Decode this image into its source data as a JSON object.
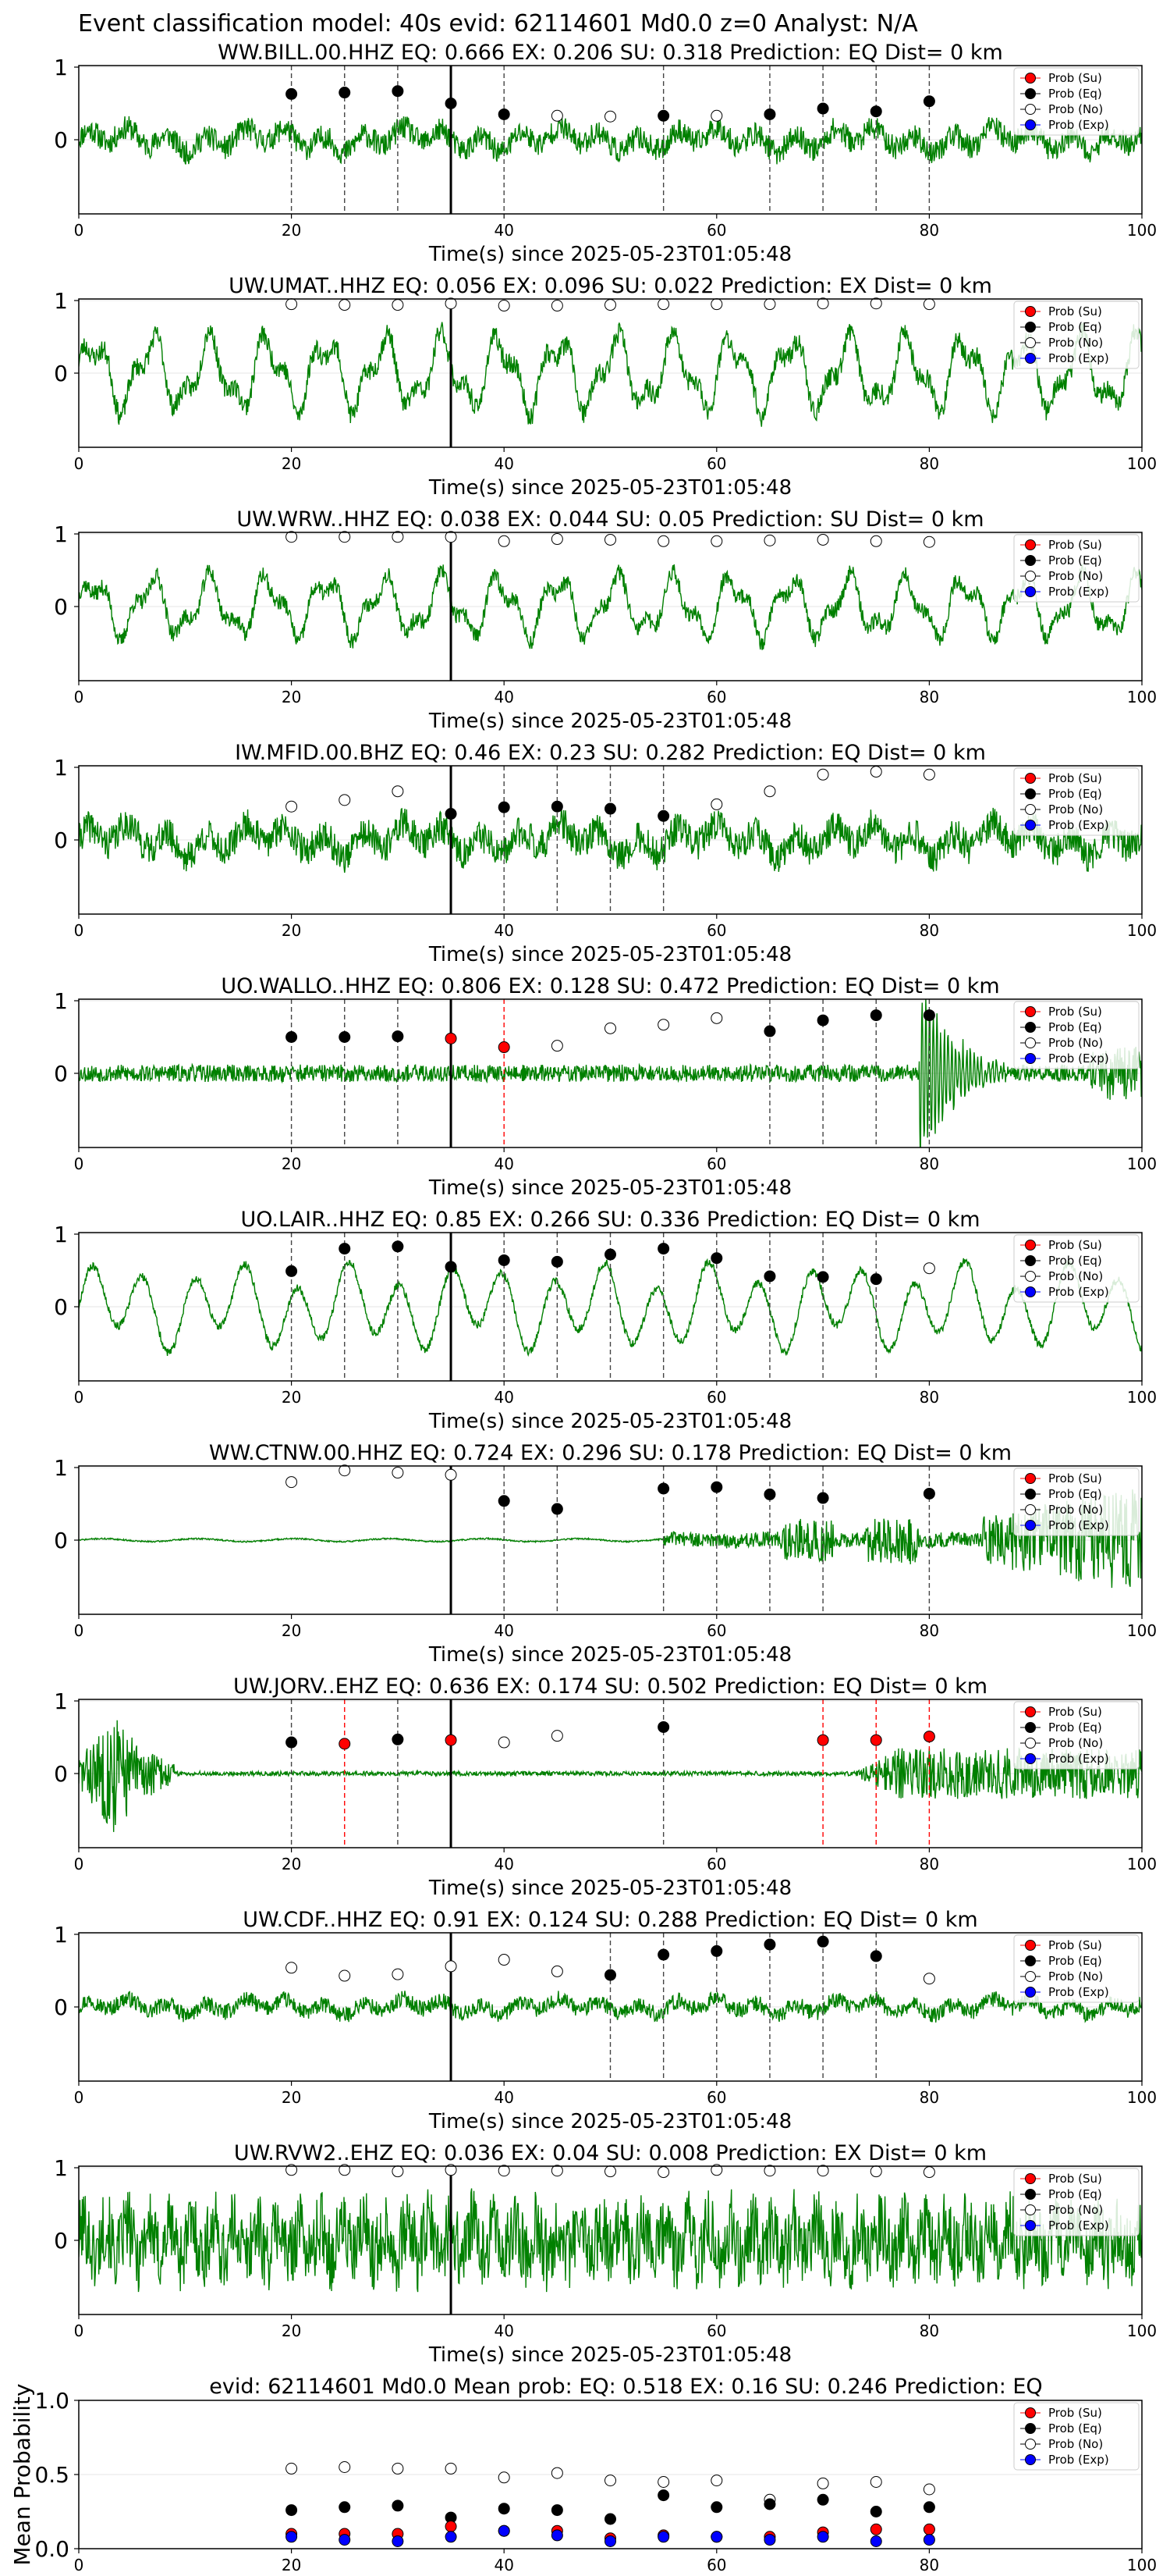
{
  "figure_title": "Event classification model: 40s evid: 62114601 Md0.0 z=0 Analyst: N/A",
  "legend_labels": [
    "Prob (Su)",
    "Prob (Eq)",
    "Prob (No)",
    "Prob (Exp)"
  ],
  "colors": {
    "su": "#ff0000",
    "eq": "#000000",
    "no": "#ffffff",
    "exp": "#0000ff",
    "trace": "#008000",
    "origin": "#000000"
  },
  "xlabel": "Time(s) since 2025-05-23T01:05:48",
  "x_ticks": [
    0,
    20,
    40,
    60,
    80,
    100
  ],
  "trace_y_ticks": [
    0,
    1
  ],
  "chart_data": [
    {
      "type": "line",
      "title": "WW.BILL.00.HHZ   EQ: 0.666  EX: 0.206  SU: 0.318   Prediction: EQ    Dist= 0 km",
      "xlabel": "Time(s) since 2025-05-23T01:05:48",
      "xlim": [
        0,
        100
      ],
      "ylim": [
        -1,
        1
      ],
      "origin_time": 35,
      "trace_style": "noisy",
      "trace_amp": 0.3,
      "trace_seed": 11,
      "windows": [
        {
          "t": 20,
          "p": 0.63,
          "c": "eq"
        },
        {
          "t": 25,
          "p": 0.65,
          "c": "eq"
        },
        {
          "t": 30,
          "p": 0.67,
          "c": "eq"
        },
        {
          "t": 35,
          "p": 0.5,
          "c": "eq"
        },
        {
          "t": 40,
          "p": 0.35,
          "c": "eq"
        },
        {
          "t": 45,
          "p": 0.33,
          "c": "no"
        },
        {
          "t": 50,
          "p": 0.32,
          "c": "no"
        },
        {
          "t": 55,
          "p": 0.33,
          "c": "eq"
        },
        {
          "t": 60,
          "p": 0.33,
          "c": "no"
        },
        {
          "t": 65,
          "p": 0.35,
          "c": "eq"
        },
        {
          "t": 70,
          "p": 0.43,
          "c": "eq"
        },
        {
          "t": 75,
          "p": 0.39,
          "c": "eq"
        },
        {
          "t": 80,
          "p": 0.53,
          "c": "eq"
        }
      ]
    },
    {
      "type": "line",
      "title": "UW.UMAT..HHZ   EQ: 0.056  EX: 0.096  SU: 0.022   Prediction: EX    Dist= 0 km",
      "xlabel": "Time(s) since 2025-05-23T01:05:48",
      "xlim": [
        0,
        100
      ],
      "ylim": [
        -1,
        1
      ],
      "origin_time": 35,
      "trace_style": "wavy",
      "trace_amp": 0.55,
      "trace_seed": 23,
      "windows": [
        {
          "t": 20,
          "p": 0.95,
          "c": "no"
        },
        {
          "t": 25,
          "p": 0.94,
          "c": "no"
        },
        {
          "t": 30,
          "p": 0.94,
          "c": "no"
        },
        {
          "t": 35,
          "p": 0.96,
          "c": "no"
        },
        {
          "t": 40,
          "p": 0.93,
          "c": "no"
        },
        {
          "t": 45,
          "p": 0.93,
          "c": "no"
        },
        {
          "t": 50,
          "p": 0.94,
          "c": "no"
        },
        {
          "t": 55,
          "p": 0.95,
          "c": "no"
        },
        {
          "t": 60,
          "p": 0.95,
          "c": "no"
        },
        {
          "t": 65,
          "p": 0.95,
          "c": "no"
        },
        {
          "t": 70,
          "p": 0.96,
          "c": "no"
        },
        {
          "t": 75,
          "p": 0.96,
          "c": "no"
        },
        {
          "t": 80,
          "p": 0.95,
          "c": "no"
        }
      ]
    },
    {
      "type": "line",
      "title": "UW.WRW..HHZ   EQ: 0.038  EX: 0.044  SU: 0.05   Prediction: SU    Dist= 0 km",
      "xlabel": "Time(s) since 2025-05-23T01:05:48",
      "xlim": [
        0,
        100
      ],
      "ylim": [
        -1,
        1
      ],
      "origin_time": 35,
      "trace_style": "wavy",
      "trace_amp": 0.45,
      "trace_seed": 37,
      "windows": [
        {
          "t": 20,
          "p": 0.96,
          "c": "no"
        },
        {
          "t": 25,
          "p": 0.96,
          "c": "no"
        },
        {
          "t": 30,
          "p": 0.96,
          "c": "no"
        },
        {
          "t": 35,
          "p": 0.96,
          "c": "no"
        },
        {
          "t": 40,
          "p": 0.9,
          "c": "no"
        },
        {
          "t": 45,
          "p": 0.93,
          "c": "no"
        },
        {
          "t": 50,
          "p": 0.92,
          "c": "no"
        },
        {
          "t": 55,
          "p": 0.9,
          "c": "no"
        },
        {
          "t": 60,
          "p": 0.9,
          "c": "no"
        },
        {
          "t": 65,
          "p": 0.91,
          "c": "no"
        },
        {
          "t": 70,
          "p": 0.92,
          "c": "no"
        },
        {
          "t": 75,
          "p": 0.9,
          "c": "no"
        },
        {
          "t": 80,
          "p": 0.89,
          "c": "no"
        }
      ]
    },
    {
      "type": "line",
      "title": "IW.MFID.00.BHZ   EQ: 0.46  EX: 0.23  SU: 0.282   Prediction: EQ    Dist= 0 km",
      "xlabel": "Time(s) since 2025-05-23T01:05:48",
      "xlim": [
        0,
        100
      ],
      "ylim": [
        -1,
        1
      ],
      "origin_time": 35,
      "trace_style": "noisy",
      "trace_amp": 0.4,
      "trace_seed": 41,
      "windows": [
        {
          "t": 20,
          "p": 0.46,
          "c": "no"
        },
        {
          "t": 25,
          "p": 0.55,
          "c": "no"
        },
        {
          "t": 30,
          "p": 0.67,
          "c": "no"
        },
        {
          "t": 35,
          "p": 0.36,
          "c": "eq"
        },
        {
          "t": 40,
          "p": 0.45,
          "c": "eq"
        },
        {
          "t": 45,
          "p": 0.46,
          "c": "eq"
        },
        {
          "t": 50,
          "p": 0.43,
          "c": "eq"
        },
        {
          "t": 55,
          "p": 0.33,
          "c": "eq"
        },
        {
          "t": 60,
          "p": 0.49,
          "c": "no"
        },
        {
          "t": 65,
          "p": 0.67,
          "c": "no"
        },
        {
          "t": 70,
          "p": 0.9,
          "c": "no"
        },
        {
          "t": 75,
          "p": 0.94,
          "c": "no"
        },
        {
          "t": 80,
          "p": 0.9,
          "c": "no"
        }
      ]
    },
    {
      "type": "line",
      "title": "UO.WALLO..HHZ   EQ: 0.806  EX: 0.128  SU: 0.472   Prediction: EQ    Dist= 0 km",
      "xlabel": "Time(s) since 2025-05-23T01:05:48",
      "xlim": [
        0,
        100
      ],
      "ylim": [
        -1,
        1
      ],
      "origin_time": 35,
      "trace_style": "burst_late",
      "trace_amp": 0.12,
      "trace_seed": 53,
      "windows": [
        {
          "t": 20,
          "p": 0.5,
          "c": "eq"
        },
        {
          "t": 25,
          "p": 0.5,
          "c": "eq"
        },
        {
          "t": 30,
          "p": 0.51,
          "c": "eq"
        },
        {
          "t": 35,
          "p": 0.48,
          "c": "su"
        },
        {
          "t": 40,
          "p": 0.36,
          "c": "su"
        },
        {
          "t": 45,
          "p": 0.38,
          "c": "no"
        },
        {
          "t": 50,
          "p": 0.62,
          "c": "no"
        },
        {
          "t": 55,
          "p": 0.67,
          "c": "no"
        },
        {
          "t": 60,
          "p": 0.76,
          "c": "no"
        },
        {
          "t": 65,
          "p": 0.58,
          "c": "eq"
        },
        {
          "t": 70,
          "p": 0.73,
          "c": "eq"
        },
        {
          "t": 75,
          "p": 0.8,
          "c": "eq"
        },
        {
          "t": 80,
          "p": 0.8,
          "c": "eq"
        }
      ]
    },
    {
      "type": "line",
      "title": "UO.LAIR..HHZ   EQ: 0.85  EX: 0.266  SU: 0.336   Prediction: EQ    Dist= 0 km",
      "xlabel": "Time(s) since 2025-05-23T01:05:48",
      "xlim": [
        0,
        100
      ],
      "ylim": [
        -1,
        1
      ],
      "origin_time": 35,
      "trace_style": "smooth",
      "trace_amp": 0.55,
      "trace_seed": 67,
      "windows": [
        {
          "t": 20,
          "p": 0.49,
          "c": "eq"
        },
        {
          "t": 25,
          "p": 0.8,
          "c": "eq"
        },
        {
          "t": 30,
          "p": 0.83,
          "c": "eq"
        },
        {
          "t": 35,
          "p": 0.55,
          "c": "eq"
        },
        {
          "t": 40,
          "p": 0.64,
          "c": "eq"
        },
        {
          "t": 45,
          "p": 0.62,
          "c": "eq"
        },
        {
          "t": 50,
          "p": 0.72,
          "c": "eq"
        },
        {
          "t": 55,
          "p": 0.8,
          "c": "eq"
        },
        {
          "t": 60,
          "p": 0.67,
          "c": "eq"
        },
        {
          "t": 65,
          "p": 0.42,
          "c": "eq"
        },
        {
          "t": 70,
          "p": 0.41,
          "c": "eq"
        },
        {
          "t": 75,
          "p": 0.38,
          "c": "eq"
        },
        {
          "t": 80,
          "p": 0.53,
          "c": "no"
        }
      ]
    },
    {
      "type": "line",
      "title": "WW.CTNW.00.HHZ   EQ: 0.724  EX: 0.296  SU: 0.178   Prediction: EQ    Dist= 0 km",
      "xlabel": "Time(s) since 2025-05-23T01:05:48",
      "xlim": [
        0,
        100
      ],
      "ylim": [
        -1,
        1
      ],
      "origin_time": 35,
      "trace_style": "quiet_late",
      "trace_amp": 0.02,
      "trace_seed": 71,
      "windows": [
        {
          "t": 20,
          "p": 0.8,
          "c": "no"
        },
        {
          "t": 25,
          "p": 0.96,
          "c": "no"
        },
        {
          "t": 30,
          "p": 0.93,
          "c": "no"
        },
        {
          "t": 35,
          "p": 0.9,
          "c": "no"
        },
        {
          "t": 40,
          "p": 0.54,
          "c": "eq"
        },
        {
          "t": 45,
          "p": 0.43,
          "c": "eq"
        },
        {
          "t": 55,
          "p": 0.71,
          "c": "eq"
        },
        {
          "t": 60,
          "p": 0.73,
          "c": "eq"
        },
        {
          "t": 65,
          "p": 0.63,
          "c": "eq"
        },
        {
          "t": 70,
          "p": 0.58,
          "c": "eq"
        },
        {
          "t": 80,
          "p": 0.64,
          "c": "eq"
        }
      ]
    },
    {
      "type": "line",
      "title": "UW.JORV..EHZ   EQ: 0.636  EX: 0.174  SU: 0.502   Prediction: EQ    Dist= 0 km",
      "xlabel": "Time(s) since 2025-05-23T01:05:48",
      "xlim": [
        0,
        100
      ],
      "ylim": [
        -1,
        1
      ],
      "origin_time": 35,
      "trace_style": "burst_early",
      "trace_amp": 0.03,
      "trace_seed": 83,
      "windows": [
        {
          "t": 20,
          "p": 0.43,
          "c": "eq"
        },
        {
          "t": 25,
          "p": 0.41,
          "c": "su"
        },
        {
          "t": 30,
          "p": 0.47,
          "c": "eq"
        },
        {
          "t": 35,
          "p": 0.46,
          "c": "su"
        },
        {
          "t": 40,
          "p": 0.43,
          "c": "no"
        },
        {
          "t": 45,
          "p": 0.52,
          "c": "no"
        },
        {
          "t": 55,
          "p": 0.64,
          "c": "eq"
        },
        {
          "t": 70,
          "p": 0.46,
          "c": "su"
        },
        {
          "t": 75,
          "p": 0.46,
          "c": "su"
        },
        {
          "t": 80,
          "p": 0.51,
          "c": "su"
        }
      ]
    },
    {
      "type": "line",
      "title": "UW.CDF..HHZ   EQ: 0.91  EX: 0.124  SU: 0.288   Prediction: EQ    Dist= 0 km",
      "xlabel": "Time(s) since 2025-05-23T01:05:48",
      "xlim": [
        0,
        100
      ],
      "ylim": [
        -1,
        1
      ],
      "origin_time": 35,
      "trace_style": "noisy",
      "trace_amp": 0.2,
      "trace_seed": 97,
      "windows": [
        {
          "t": 20,
          "p": 0.54,
          "c": "no"
        },
        {
          "t": 25,
          "p": 0.43,
          "c": "no"
        },
        {
          "t": 30,
          "p": 0.45,
          "c": "no"
        },
        {
          "t": 35,
          "p": 0.56,
          "c": "no"
        },
        {
          "t": 40,
          "p": 0.65,
          "c": "no"
        },
        {
          "t": 45,
          "p": 0.49,
          "c": "no"
        },
        {
          "t": 50,
          "p": 0.44,
          "c": "eq"
        },
        {
          "t": 55,
          "p": 0.72,
          "c": "eq"
        },
        {
          "t": 60,
          "p": 0.77,
          "c": "eq"
        },
        {
          "t": 65,
          "p": 0.86,
          "c": "eq"
        },
        {
          "t": 70,
          "p": 0.9,
          "c": "eq"
        },
        {
          "t": 75,
          "p": 0.7,
          "c": "eq"
        },
        {
          "t": 80,
          "p": 0.39,
          "c": "no"
        }
      ]
    },
    {
      "type": "line",
      "title": "UW.RVW2..EHZ   EQ: 0.036  EX: 0.04  SU: 0.008   Prediction: EX    Dist= 0 km",
      "xlabel": "Time(s) since 2025-05-23T01:05:48",
      "xlim": [
        0,
        100
      ],
      "ylim": [
        -1,
        1
      ],
      "origin_time": 35,
      "trace_style": "dense",
      "trace_amp": 0.6,
      "trace_seed": 101,
      "windows": [
        {
          "t": 20,
          "p": 0.97,
          "c": "no"
        },
        {
          "t": 25,
          "p": 0.97,
          "c": "no"
        },
        {
          "t": 30,
          "p": 0.95,
          "c": "no"
        },
        {
          "t": 35,
          "p": 0.97,
          "c": "no"
        },
        {
          "t": 40,
          "p": 0.96,
          "c": "no"
        },
        {
          "t": 45,
          "p": 0.96,
          "c": "no"
        },
        {
          "t": 50,
          "p": 0.95,
          "c": "no"
        },
        {
          "t": 55,
          "p": 0.94,
          "c": "no"
        },
        {
          "t": 60,
          "p": 0.97,
          "c": "no"
        },
        {
          "t": 65,
          "p": 0.96,
          "c": "no"
        },
        {
          "t": 70,
          "p": 0.96,
          "c": "no"
        },
        {
          "t": 75,
          "p": 0.95,
          "c": "no"
        },
        {
          "t": 80,
          "p": 0.94,
          "c": "no"
        }
      ]
    },
    {
      "type": "scatter",
      "title": "evid: 62114601  Md0.0   Mean prob:   EQ: 0.518  EX: 0.16  SU: 0.246   Prediction: EQ",
      "ylabel": "Mean Probability",
      "xlim": [
        0,
        100
      ],
      "ylim": [
        0,
        1
      ],
      "y_ticks": [
        0.0,
        0.5,
        1.0
      ],
      "y_tick_labels": [
        "0.0",
        "0.5",
        "1.0"
      ],
      "x": [
        20,
        25,
        30,
        35,
        40,
        45,
        50,
        55,
        60,
        65,
        70,
        75,
        80
      ],
      "series": [
        {
          "name": "Prob (Su)",
          "key": "su",
          "values": [
            0.1,
            0.1,
            0.1,
            0.15,
            0.12,
            0.12,
            0.07,
            0.09,
            0.08,
            0.08,
            0.11,
            0.13,
            0.13
          ]
        },
        {
          "name": "Prob (Eq)",
          "key": "eq",
          "values": [
            0.26,
            0.28,
            0.29,
            0.21,
            0.27,
            0.26,
            0.2,
            0.36,
            0.28,
            0.3,
            0.33,
            0.25,
            0.28
          ]
        },
        {
          "name": "Prob (No)",
          "key": "no",
          "values": [
            0.54,
            0.55,
            0.54,
            0.54,
            0.48,
            0.51,
            0.46,
            0.45,
            0.46,
            0.33,
            0.44,
            0.45,
            0.4
          ]
        },
        {
          "name": "Prob (Exp)",
          "key": "exp",
          "values": [
            0.08,
            0.06,
            0.05,
            0.08,
            0.12,
            0.09,
            0.05,
            0.08,
            0.08,
            0.06,
            0.08,
            0.05,
            0.06
          ]
        }
      ]
    }
  ]
}
